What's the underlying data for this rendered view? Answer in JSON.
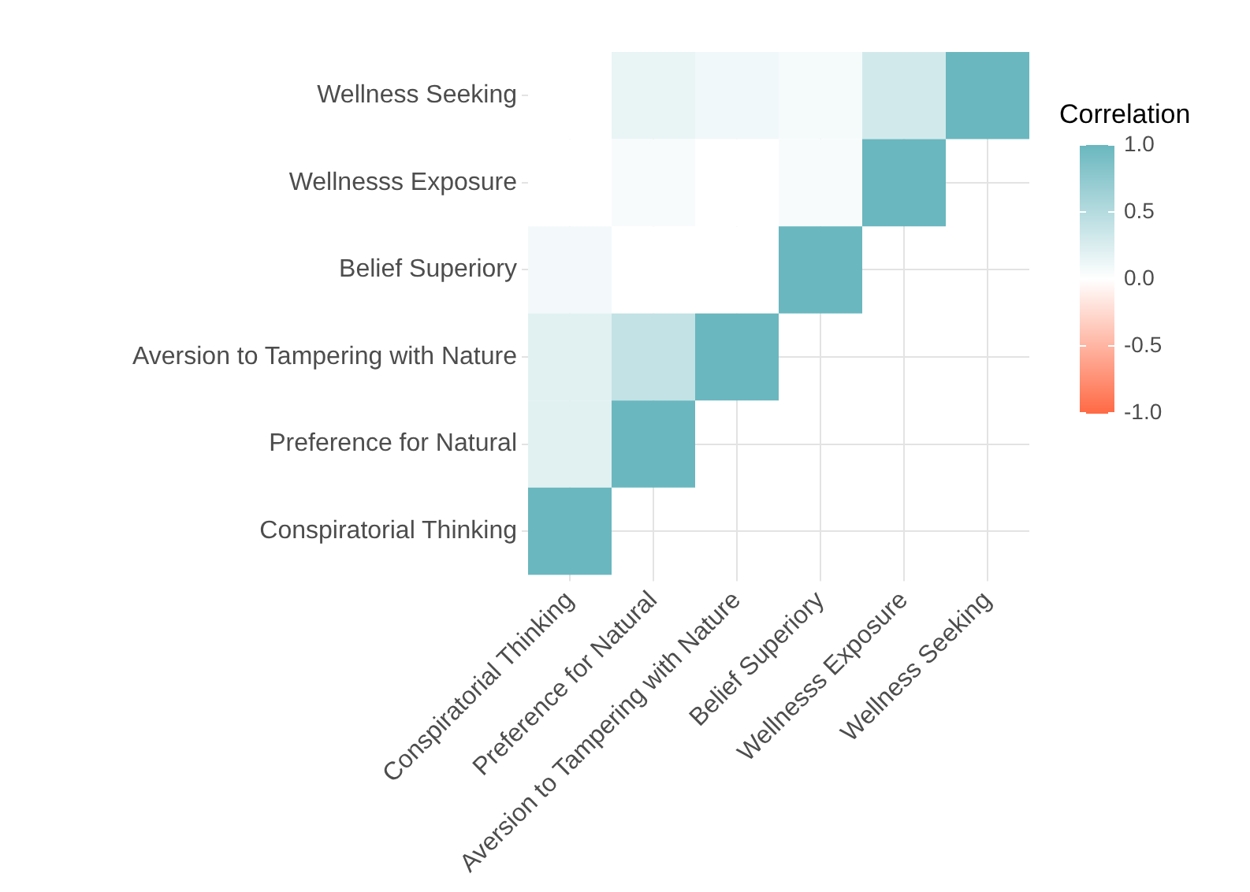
{
  "chart_data": {
    "type": "heatmap",
    "clabel": "Correlation",
    "categories": [
      "Conspiratorial Thinking",
      "Preference for Natural",
      "Aversion to Tampering with Nature",
      "Belief Superiory",
      "Wellnesss Exposure",
      "Wellness Seeking"
    ],
    "y_categories": [
      "Wellness Seeking",
      "Wellnesss Exposure",
      "Belief Superiory",
      "Aversion to Tampering with Nature",
      "Preference for Natural",
      "Conspiratorial Thinking"
    ],
    "cells": [
      [
        0,
        0.15,
        0.1,
        0.07,
        0.3,
        1
      ],
      [
        0,
        0.05,
        0,
        0.05,
        1,
        null
      ],
      [
        0.08,
        0,
        0,
        1,
        null,
        null
      ],
      [
        0.2,
        0.4,
        1,
        null,
        null,
        null
      ],
      [
        0.2,
        1,
        null,
        null,
        null,
        null
      ],
      [
        1,
        null,
        null,
        null,
        null,
        null
      ]
    ],
    "clim": [
      -1,
      1
    ],
    "cticks": [
      {
        "value": 1,
        "label": "1.0"
      },
      0.5,
      {
        "value": 0,
        "label": "0.0"
      },
      -0.5,
      {
        "value": -1,
        "label": "-1.0"
      }
    ],
    "grid": true
  }
}
